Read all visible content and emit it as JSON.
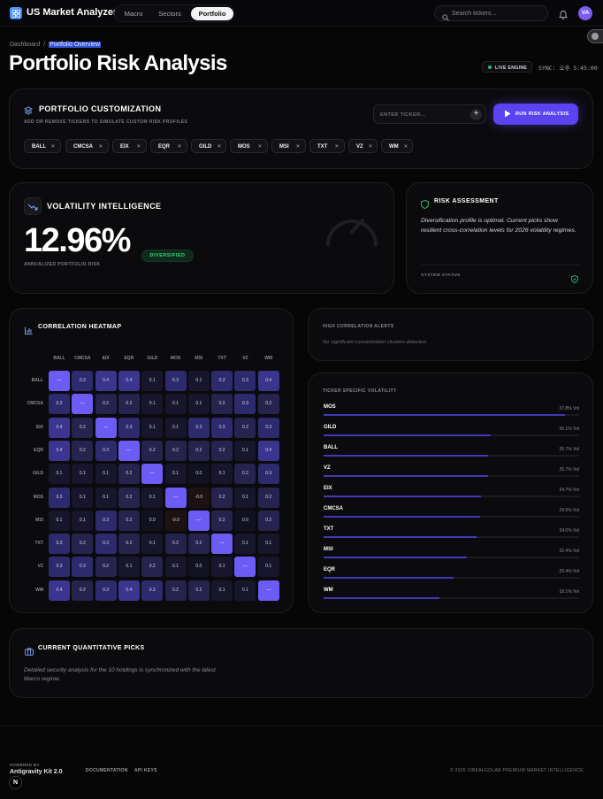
{
  "app": {
    "name": "US Market Analyzer"
  },
  "nav": {
    "tabs": [
      {
        "label": "Macro",
        "active": false
      },
      {
        "label": "Sectors",
        "active": false
      },
      {
        "label": "Portfolio",
        "active": true
      }
    ],
    "search_placeholder": "Search tickers...",
    "avatar_initials": "VA"
  },
  "breadcrumb": {
    "root": "Dashboard",
    "separator": "/",
    "current": "Portfolio Overview"
  },
  "page_title": "Portfolio Risk Analysis",
  "status": {
    "engine_label": "LIVE ENGINE",
    "sync_text": "SYNC: 오후 5:45:00"
  },
  "customization": {
    "title": "PORTFOLIO CUSTOMIZATION",
    "subtitle": "ADD OR REMOVE TICKERS TO SIMULATE CUSTOM RISK PROFILES",
    "input_placeholder": "ENTER TICKER...",
    "run_label": "RUN RISK ANALYSIS",
    "tickers": [
      "BALL",
      "CMCSA",
      "EIX",
      "EQR",
      "GILD",
      "MOS",
      "MSI",
      "TXT",
      "VZ",
      "WM"
    ]
  },
  "volatility": {
    "title": "VOLATILITY INTELLIGENCE",
    "value": "12.96%",
    "caption": "ANNUALIZED PORTFOLIO RISK",
    "badge": "DIVERSIFIED"
  },
  "risk": {
    "title": "RISK ASSESSMENT",
    "text": "Diversification profile is optimal. Current picks show resilient cross-correlation levels for 2026 volatility regimes.",
    "footer": "SYSTEM STATUS"
  },
  "heatmap": {
    "title": "CORRELATION HEATMAP",
    "labels": [
      "BALL",
      "CMCSA",
      "EIX",
      "EQR",
      "GILD",
      "MOS",
      "MSI",
      "TXT",
      "VZ",
      "WM"
    ],
    "matrix": [
      [
        "—",
        "0.3",
        "0.4",
        "0.4",
        "0.1",
        "0.3",
        "0.1",
        "0.3",
        "0.3",
        "0.4"
      ],
      [
        "0.3",
        "—",
        "0.2",
        "0.2",
        "0.1",
        "0.1",
        "0.1",
        "0.2",
        "0.3",
        "0.2"
      ],
      [
        "0.4",
        "0.2",
        "—",
        "0.3",
        "0.1",
        "0.1",
        "0.3",
        "0.3",
        "0.2",
        "0.3"
      ],
      [
        "0.4",
        "0.2",
        "0.3",
        "—",
        "0.2",
        "0.2",
        "0.2",
        "0.2",
        "0.1",
        "0.4"
      ],
      [
        "0.1",
        "0.1",
        "0.1",
        "0.2",
        "—",
        "0.1",
        "0.0",
        "0.1",
        "0.2",
        "0.3"
      ],
      [
        "0.3",
        "0.1",
        "0.1",
        "0.2",
        "0.1",
        "—",
        "-0.0",
        "0.2",
        "0.1",
        "0.2"
      ],
      [
        "0.1",
        "0.1",
        "0.3",
        "0.2",
        "0.0",
        "-0.0",
        "—",
        "0.2",
        "0.0",
        "0.2"
      ],
      [
        "0.3",
        "0.2",
        "0.3",
        "0.2",
        "0.1",
        "0.2",
        "0.2",
        "—",
        "0.1",
        "0.1"
      ],
      [
        "0.3",
        "0.3",
        "0.2",
        "0.1",
        "0.2",
        "0.1",
        "0.0",
        "0.1",
        "—",
        "0.1"
      ],
      [
        "0.4",
        "0.2",
        "0.3",
        "0.4",
        "0.3",
        "0.2",
        "0.2",
        "0.1",
        "0.1",
        "—"
      ]
    ],
    "colors": {
      "diagonal": "#6c5cf5",
      "high": "#3b3590",
      "mid": "#26234f",
      "low": "#17162c",
      "neg": "#1c1212"
    }
  },
  "alerts": {
    "title": "HIGH CORRELATION ALERTS",
    "text": "No significant concentration clusters detected."
  },
  "ticker_volatility": {
    "title": "TICKER SPECIFIC VOLATILITY",
    "suffix": "Vol",
    "items": [
      {
        "ticker": "MOS",
        "value": 37.8,
        "label": "37.8% Vol"
      },
      {
        "ticker": "GILD",
        "value": 26.1,
        "label": "26.1% Vol"
      },
      {
        "ticker": "BALL",
        "value": 25.7,
        "label": "25.7% Vol"
      },
      {
        "ticker": "VZ",
        "value": 25.7,
        "label": "25.7% Vol"
      },
      {
        "ticker": "EIX",
        "value": 24.7,
        "label": "24.7% Vol"
      },
      {
        "ticker": "CMCSA",
        "value": 24.5,
        "label": "24.5% Vol"
      },
      {
        "ticker": "TXT",
        "value": 24.0,
        "label": "24.0% Vol"
      },
      {
        "ticker": "MSI",
        "value": 22.4,
        "label": "22.4% Vol"
      },
      {
        "ticker": "EQR",
        "value": 20.4,
        "label": "20.4% Vol"
      },
      {
        "ticker": "WM",
        "value": 18.1,
        "label": "18.1% Vol"
      }
    ]
  },
  "picks": {
    "title": "CURRENT QUANTITATIVE PICKS",
    "text": "Detailed security analysis for the 10 holdings is synchronized with the latest Macro regime."
  },
  "footer": {
    "powered_by": "POWERED BY",
    "kit": "Antigravity Kit 2.0",
    "links": [
      "DOCUMENTATION",
      "API KEYS"
    ],
    "copyright": "© 2026 VIBEALGOLAB PREMIUM MARKET INTELLIGENCE",
    "badge": "N"
  },
  "accent_color": "#5b43f0"
}
